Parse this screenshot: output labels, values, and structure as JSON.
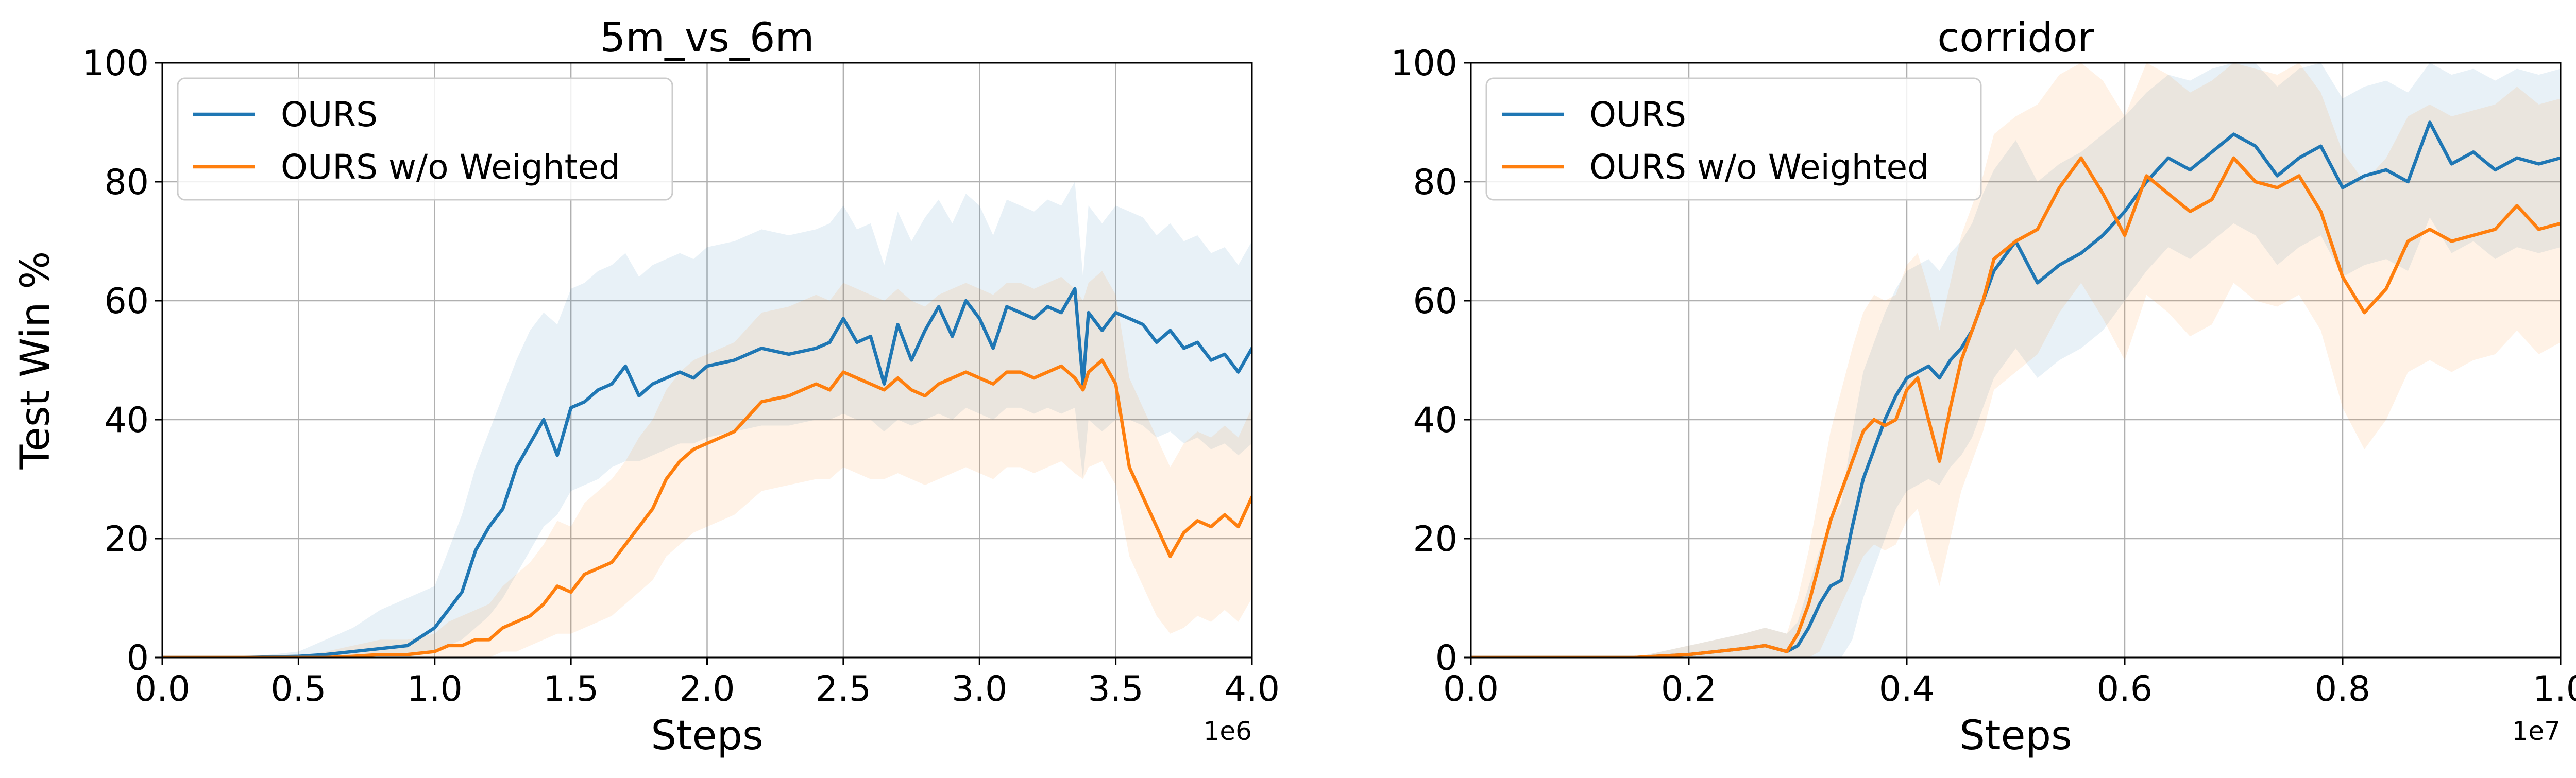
{
  "chart_data": [
    {
      "type": "line",
      "title": "5m_vs_6m",
      "xlabel": "Steps",
      "ylabel": "Test Win %",
      "x_offset_label": "1e6",
      "xlim": [
        0,
        4.0
      ],
      "ylim": [
        0,
        100
      ],
      "xticks": [
        "0.0",
        "0.5",
        "1.0",
        "1.5",
        "2.0",
        "2.5",
        "3.0",
        "3.5",
        "4.0"
      ],
      "xtick_values": [
        0,
        0.5,
        1.0,
        1.5,
        2.0,
        2.5,
        3.0,
        3.5,
        4.0
      ],
      "yticks": [
        "0",
        "20",
        "40",
        "60",
        "80",
        "100"
      ],
      "ytick_values": [
        0,
        20,
        40,
        60,
        80,
        100
      ],
      "grid": true,
      "legend_position": "top-left",
      "series": [
        {
          "name": "OURS",
          "color": "#1f77b4",
          "x": [
            0,
            0.3,
            0.5,
            0.6,
            0.7,
            0.8,
            0.9,
            1.0,
            1.05,
            1.1,
            1.15,
            1.2,
            1.25,
            1.3,
            1.35,
            1.4,
            1.45,
            1.5,
            1.55,
            1.6,
            1.65,
            1.7,
            1.75,
            1.8,
            1.85,
            1.9,
            1.95,
            2.0,
            2.1,
            2.2,
            2.3,
            2.4,
            2.45,
            2.5,
            2.55,
            2.6,
            2.65,
            2.7,
            2.75,
            2.8,
            2.85,
            2.9,
            2.95,
            3.0,
            3.05,
            3.1,
            3.15,
            3.2,
            3.25,
            3.3,
            3.35,
            3.38,
            3.4,
            3.45,
            3.5,
            3.55,
            3.6,
            3.65,
            3.7,
            3.75,
            3.8,
            3.85,
            3.9,
            3.95,
            4.0
          ],
          "y": [
            0,
            0,
            0.2,
            0.5,
            1,
            1.5,
            2,
            5,
            8,
            11,
            18,
            22,
            25,
            32,
            36,
            40,
            34,
            42,
            43,
            45,
            46,
            49,
            44,
            46,
            47,
            48,
            47,
            49,
            50,
            52,
            51,
            52,
            53,
            57,
            53,
            54,
            46,
            56,
            50,
            55,
            59,
            54,
            60,
            57,
            52,
            59,
            58,
            57,
            59,
            58,
            62,
            46,
            58,
            55,
            58,
            57,
            56,
            53,
            55,
            52,
            53,
            50,
            51,
            48,
            52
          ],
          "band_low": [
            0,
            0,
            0,
            0,
            0,
            0,
            0,
            1,
            2,
            3,
            5,
            7,
            10,
            14,
            18,
            22,
            24,
            28,
            29,
            30,
            32,
            33,
            33,
            34,
            35,
            36,
            36,
            37,
            38,
            39,
            39,
            40,
            40,
            41,
            40,
            40,
            38,
            40,
            39,
            40,
            41,
            40,
            42,
            41,
            40,
            42,
            42,
            41,
            42,
            41,
            42,
            30,
            40,
            38,
            40,
            40,
            39,
            37,
            38,
            36,
            37,
            35,
            36,
            34,
            36
          ],
          "band_high": [
            0,
            0,
            1,
            3,
            5,
            8,
            10,
            12,
            18,
            24,
            32,
            38,
            44,
            50,
            55,
            58,
            56,
            62,
            63,
            65,
            66,
            68,
            64,
            66,
            67,
            68,
            67,
            69,
            70,
            72,
            71,
            72,
            73,
            76,
            72,
            73,
            66,
            75,
            70,
            74,
            77,
            73,
            78,
            76,
            71,
            77,
            76,
            75,
            77,
            76,
            80,
            64,
            76,
            73,
            76,
            75,
            74,
            71,
            73,
            70,
            71,
            68,
            69,
            66,
            70
          ]
        },
        {
          "name": "OURS w/o Weighted",
          "color": "#ff7f0e",
          "x": [
            0,
            0.3,
            0.5,
            0.6,
            0.7,
            0.8,
            0.9,
            1.0,
            1.05,
            1.1,
            1.15,
            1.2,
            1.25,
            1.3,
            1.35,
            1.4,
            1.45,
            1.5,
            1.55,
            1.6,
            1.65,
            1.7,
            1.75,
            1.8,
            1.85,
            1.9,
            1.95,
            2.0,
            2.1,
            2.2,
            2.3,
            2.4,
            2.45,
            2.5,
            2.55,
            2.6,
            2.65,
            2.7,
            2.75,
            2.8,
            2.85,
            2.9,
            2.95,
            3.0,
            3.05,
            3.1,
            3.15,
            3.2,
            3.25,
            3.3,
            3.35,
            3.38,
            3.4,
            3.45,
            3.5,
            3.55,
            3.6,
            3.65,
            3.7,
            3.75,
            3.8,
            3.85,
            3.9,
            3.95,
            4.0
          ],
          "y": [
            0,
            0,
            0,
            0,
            0.2,
            0.5,
            0.5,
            1,
            2,
            2,
            3,
            3,
            5,
            6,
            7,
            9,
            12,
            11,
            14,
            15,
            16,
            19,
            22,
            25,
            30,
            33,
            35,
            36,
            38,
            43,
            44,
            46,
            45,
            48,
            47,
            46,
            45,
            47,
            45,
            44,
            46,
            47,
            48,
            47,
            46,
            48,
            48,
            47,
            48,
            49,
            47,
            45,
            48,
            50,
            46,
            32,
            27,
            22,
            17,
            21,
            23,
            22,
            24,
            22,
            27
          ],
          "band_low": [
            0,
            0,
            0,
            0,
            0,
            0,
            0,
            0,
            0,
            0,
            0,
            0,
            1,
            1,
            2,
            3,
            4,
            4,
            5,
            6,
            7,
            9,
            11,
            13,
            17,
            19,
            21,
            22,
            24,
            28,
            29,
            30,
            30,
            32,
            31,
            30,
            30,
            31,
            30,
            29,
            30,
            31,
            32,
            31,
            30,
            32,
            32,
            31,
            32,
            33,
            31,
            30,
            32,
            33,
            29,
            17,
            12,
            7,
            4,
            5,
            7,
            6,
            8,
            6,
            10
          ],
          "band_high": [
            0,
            0,
            0,
            1,
            2,
            3,
            3,
            4,
            6,
            7,
            8,
            9,
            12,
            14,
            16,
            19,
            23,
            22,
            26,
            28,
            30,
            33,
            37,
            40,
            45,
            48,
            50,
            51,
            53,
            58,
            59,
            61,
            60,
            63,
            62,
            61,
            60,
            62,
            60,
            59,
            61,
            62,
            63,
            62,
            61,
            63,
            63,
            62,
            63,
            64,
            62,
            60,
            63,
            65,
            61,
            47,
            42,
            37,
            32,
            36,
            38,
            37,
            39,
            37,
            42
          ]
        }
      ]
    },
    {
      "type": "line",
      "title": "corridor",
      "xlabel": "Steps",
      "ylabel": "",
      "x_offset_label": "1e7",
      "xlim": [
        0,
        1.0
      ],
      "ylim": [
        0,
        100
      ],
      "xticks": [
        "0.0",
        "0.2",
        "0.4",
        "0.6",
        "0.8",
        "1.0"
      ],
      "xtick_values": [
        0,
        0.2,
        0.4,
        0.6,
        0.8,
        1.0
      ],
      "yticks": [
        "0",
        "20",
        "40",
        "60",
        "80",
        "100"
      ],
      "ytick_values": [
        0,
        20,
        40,
        60,
        80,
        100
      ],
      "grid": true,
      "legend_position": "top-left",
      "series": [
        {
          "name": "OURS",
          "color": "#1f77b4",
          "x": [
            0,
            0.15,
            0.2,
            0.25,
            0.27,
            0.29,
            0.3,
            0.31,
            0.32,
            0.33,
            0.34,
            0.35,
            0.36,
            0.37,
            0.38,
            0.39,
            0.4,
            0.41,
            0.42,
            0.43,
            0.44,
            0.45,
            0.46,
            0.47,
            0.48,
            0.5,
            0.52,
            0.54,
            0.56,
            0.58,
            0.6,
            0.62,
            0.64,
            0.66,
            0.68,
            0.7,
            0.72,
            0.74,
            0.76,
            0.78,
            0.8,
            0.82,
            0.84,
            0.86,
            0.88,
            0.9,
            0.92,
            0.94,
            0.96,
            0.98,
            1.0
          ],
          "y": [
            0,
            0,
            0.5,
            1.5,
            2,
            1,
            2,
            5,
            9,
            12,
            13,
            22,
            30,
            35,
            40,
            44,
            47,
            48,
            49,
            47,
            50,
            52,
            55,
            60,
            65,
            70,
            63,
            66,
            68,
            71,
            75,
            80,
            84,
            82,
            85,
            88,
            86,
            81,
            84,
            86,
            79,
            81,
            82,
            80,
            90,
            83,
            85,
            82,
            84,
            83,
            84
          ],
          "band_low": [
            0,
            0,
            0,
            0,
            0,
            0,
            0,
            0,
            0,
            0,
            0,
            3,
            10,
            15,
            20,
            25,
            28,
            29,
            30,
            29,
            32,
            34,
            37,
            42,
            47,
            52,
            47,
            50,
            52,
            55,
            60,
            65,
            69,
            67,
            70,
            73,
            71,
            66,
            69,
            71,
            64,
            66,
            67,
            65,
            74,
            68,
            70,
            67,
            69,
            68,
            69
          ],
          "band_high": [
            0,
            0,
            2,
            4,
            5,
            4,
            6,
            12,
            18,
            23,
            26,
            38,
            48,
            53,
            58,
            62,
            65,
            66,
            67,
            65,
            68,
            70,
            73,
            78,
            82,
            87,
            80,
            83,
            85,
            88,
            91,
            95,
            98,
            97,
            99,
            100,
            100,
            96,
            99,
            100,
            94,
            96,
            97,
            95,
            100,
            98,
            99,
            97,
            99,
            98,
            99
          ]
        },
        {
          "name": "OURS w/o Weighted",
          "color": "#ff7f0e",
          "x": [
            0,
            0.15,
            0.2,
            0.25,
            0.27,
            0.29,
            0.3,
            0.31,
            0.32,
            0.33,
            0.34,
            0.35,
            0.36,
            0.37,
            0.38,
            0.39,
            0.4,
            0.41,
            0.42,
            0.43,
            0.44,
            0.45,
            0.46,
            0.47,
            0.48,
            0.5,
            0.52,
            0.54,
            0.56,
            0.58,
            0.6,
            0.62,
            0.64,
            0.66,
            0.68,
            0.7,
            0.72,
            0.74,
            0.76,
            0.78,
            0.8,
            0.82,
            0.84,
            0.86,
            0.88,
            0.9,
            0.92,
            0.94,
            0.96,
            0.98,
            1.0
          ],
          "y": [
            0,
            0,
            0.5,
            1.5,
            2,
            1,
            4,
            9,
            16,
            23,
            28,
            33,
            38,
            40,
            39,
            40,
            45,
            47,
            40,
            33,
            42,
            50,
            55,
            60,
            67,
            70,
            72,
            79,
            84,
            78,
            71,
            81,
            78,
            75,
            77,
            84,
            80,
            79,
            81,
            75,
            64,
            58,
            62,
            70,
            72,
            70,
            71,
            72,
            76,
            72,
            73
          ],
          "band_low": [
            0,
            0,
            0,
            0,
            0,
            0,
            0,
            0,
            1,
            5,
            9,
            13,
            17,
            19,
            18,
            19,
            23,
            25,
            18,
            12,
            20,
            28,
            33,
            38,
            45,
            48,
            51,
            58,
            63,
            57,
            50,
            61,
            58,
            54,
            56,
            63,
            60,
            59,
            61,
            55,
            42,
            35,
            40,
            48,
            50,
            48,
            50,
            51,
            55,
            51,
            53
          ],
          "band_high": [
            0,
            0,
            2,
            4,
            5,
            4,
            10,
            18,
            28,
            38,
            45,
            52,
            58,
            61,
            60,
            61,
            66,
            68,
            62,
            55,
            63,
            71,
            76,
            81,
            88,
            91,
            93,
            98,
            100,
            97,
            91,
            100,
            98,
            95,
            97,
            100,
            99,
            98,
            100,
            95,
            85,
            80,
            84,
            91,
            93,
            91,
            92,
            93,
            96,
            93,
            94
          ]
        }
      ]
    }
  ]
}
